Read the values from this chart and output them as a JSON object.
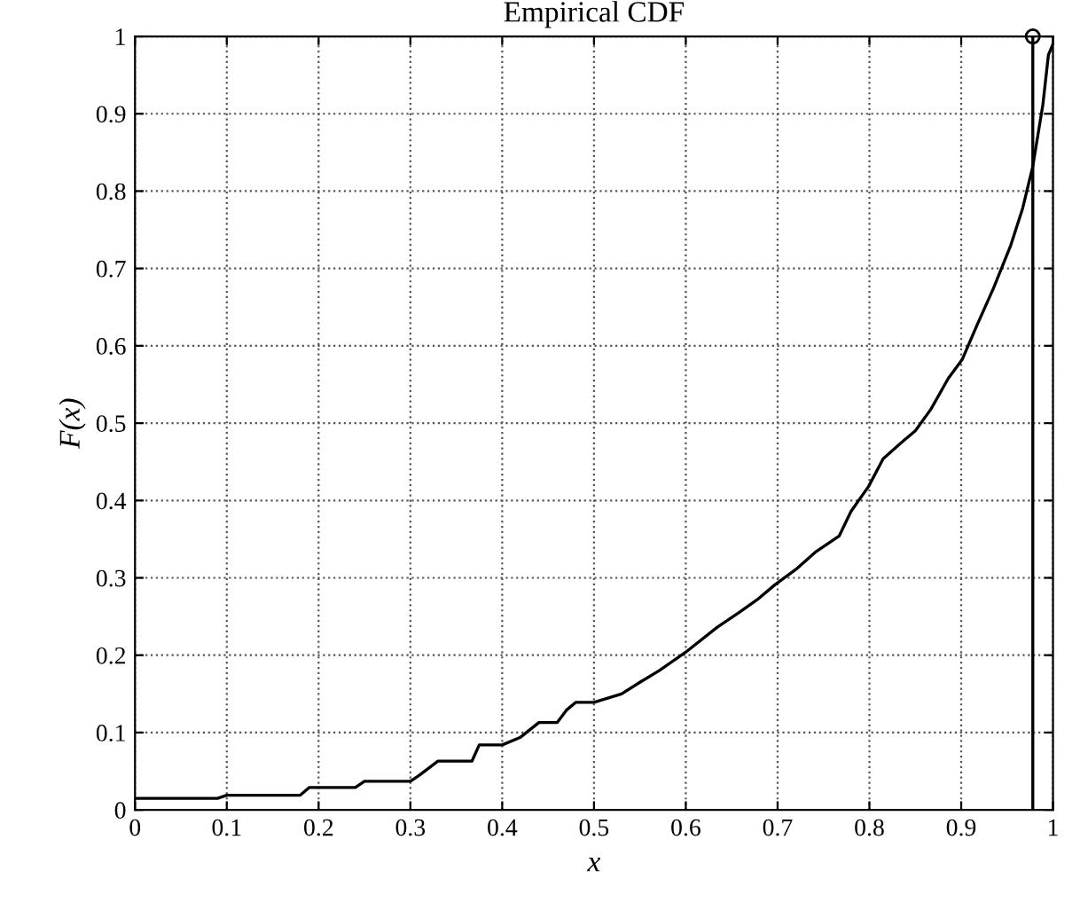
{
  "chart_data": {
    "type": "line",
    "title": "Empirical CDF",
    "xlabel": "x",
    "ylabel": "F(x)",
    "xlim": [
      0,
      1
    ],
    "ylim": [
      0,
      1
    ],
    "xticks": [
      0,
      0.1,
      0.2,
      0.3,
      0.4,
      0.5,
      0.6,
      0.7,
      0.8,
      0.9,
      1
    ],
    "yticks": [
      0,
      0.1,
      0.2,
      0.3,
      0.4,
      0.5,
      0.6,
      0.7,
      0.8,
      0.9,
      1
    ],
    "grid": true,
    "line_style": "solid",
    "series": [
      {
        "color": "#000000",
        "marker": "none",
        "x": [
          0,
          0.09,
          0.1,
          0.18,
          0.19,
          0.24,
          0.25,
          0.3,
          0.31,
          0.33,
          0.367,
          0.375,
          0.4,
          0.42,
          0.44,
          0.46,
          0.47,
          0.48,
          0.5,
          0.53,
          0.55,
          0.571,
          0.6,
          0.634,
          0.659,
          0.678,
          0.697,
          0.72,
          0.742,
          0.767,
          0.78,
          0.799,
          0.815,
          0.834,
          0.85,
          0.867,
          0.886,
          0.901,
          0.917,
          0.935,
          0.954,
          0.967,
          0.978,
          0.989,
          0.995,
          1
        ],
        "values": [
          0.015,
          0.015,
          0.019,
          0.019,
          0.029,
          0.029,
          0.037,
          0.037,
          0.045,
          0.063,
          0.063,
          0.084,
          0.084,
          0.094,
          0.113,
          0.113,
          0.129,
          0.139,
          0.139,
          0.15,
          0.165,
          0.18,
          0.204,
          0.236,
          0.256,
          0.272,
          0.291,
          0.311,
          0.334,
          0.354,
          0.386,
          0.418,
          0.454,
          0.474,
          0.49,
          0.518,
          0.558,
          0.582,
          0.626,
          0.674,
          0.73,
          0.778,
          0.832,
          0.912,
          0.976,
          0.99
        ]
      },
      {
        "type": "scatter",
        "color": "#000000",
        "marker": "circle",
        "x": [
          0.978
        ],
        "values": [
          1
        ]
      }
    ],
    "ref_lines": [
      {
        "axis": "x",
        "value": 0.978,
        "color": "#000000",
        "line_style": "solid"
      }
    ]
  }
}
